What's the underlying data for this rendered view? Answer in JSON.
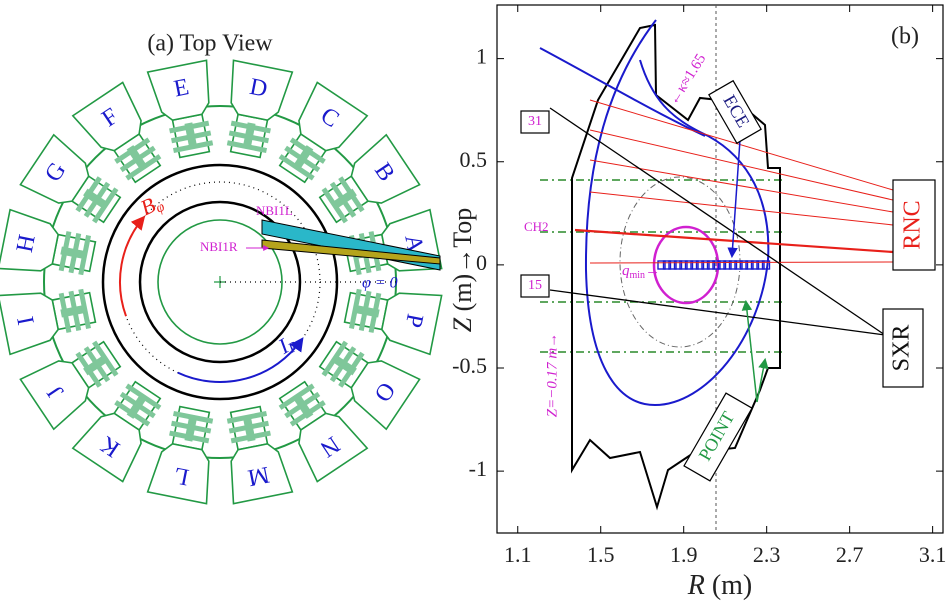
{
  "panel_a": {
    "title": "(a) Top View",
    "ports": [
      "A",
      "B",
      "C",
      "D",
      "E",
      "F",
      "G",
      "H",
      "I",
      "J",
      "K",
      "L",
      "M",
      "N",
      "O",
      "P"
    ],
    "b_phi": {
      "main": "B",
      "sub": "φ"
    },
    "i_p": {
      "main": "I",
      "sub": "P"
    },
    "nbi_left": "NBI1L",
    "nbi_right": "NBI1R",
    "phi_zero": "φ = 0"
  },
  "panel_b": {
    "label": "(b)",
    "xlabel": {
      "var": "R",
      "unit": " (m)"
    },
    "ylabel": {
      "var": "Z",
      "unit": " (m)→Top"
    },
    "xlim": [
      1.0,
      3.15
    ],
    "ylim": [
      -1.3,
      1.26
    ],
    "xticks": [
      1.1,
      1.5,
      1.9,
      2.3,
      2.7,
      3.1
    ],
    "yticks": [
      -1,
      -0.5,
      0,
      0.5,
      1
    ],
    "annotations": {
      "ece": "ECE",
      "rnc": "RNC",
      "sxr": "SXR",
      "point": "POINT",
      "chord_31": "31",
      "chord_15": "15",
      "ch2": "CH2",
      "qmin": {
        "main": "q",
        "sub": "min",
        "tail": "→"
      },
      "z_line": "Z=−0.17 m→",
      "kappa": "←κ≈1.65"
    }
  }
}
